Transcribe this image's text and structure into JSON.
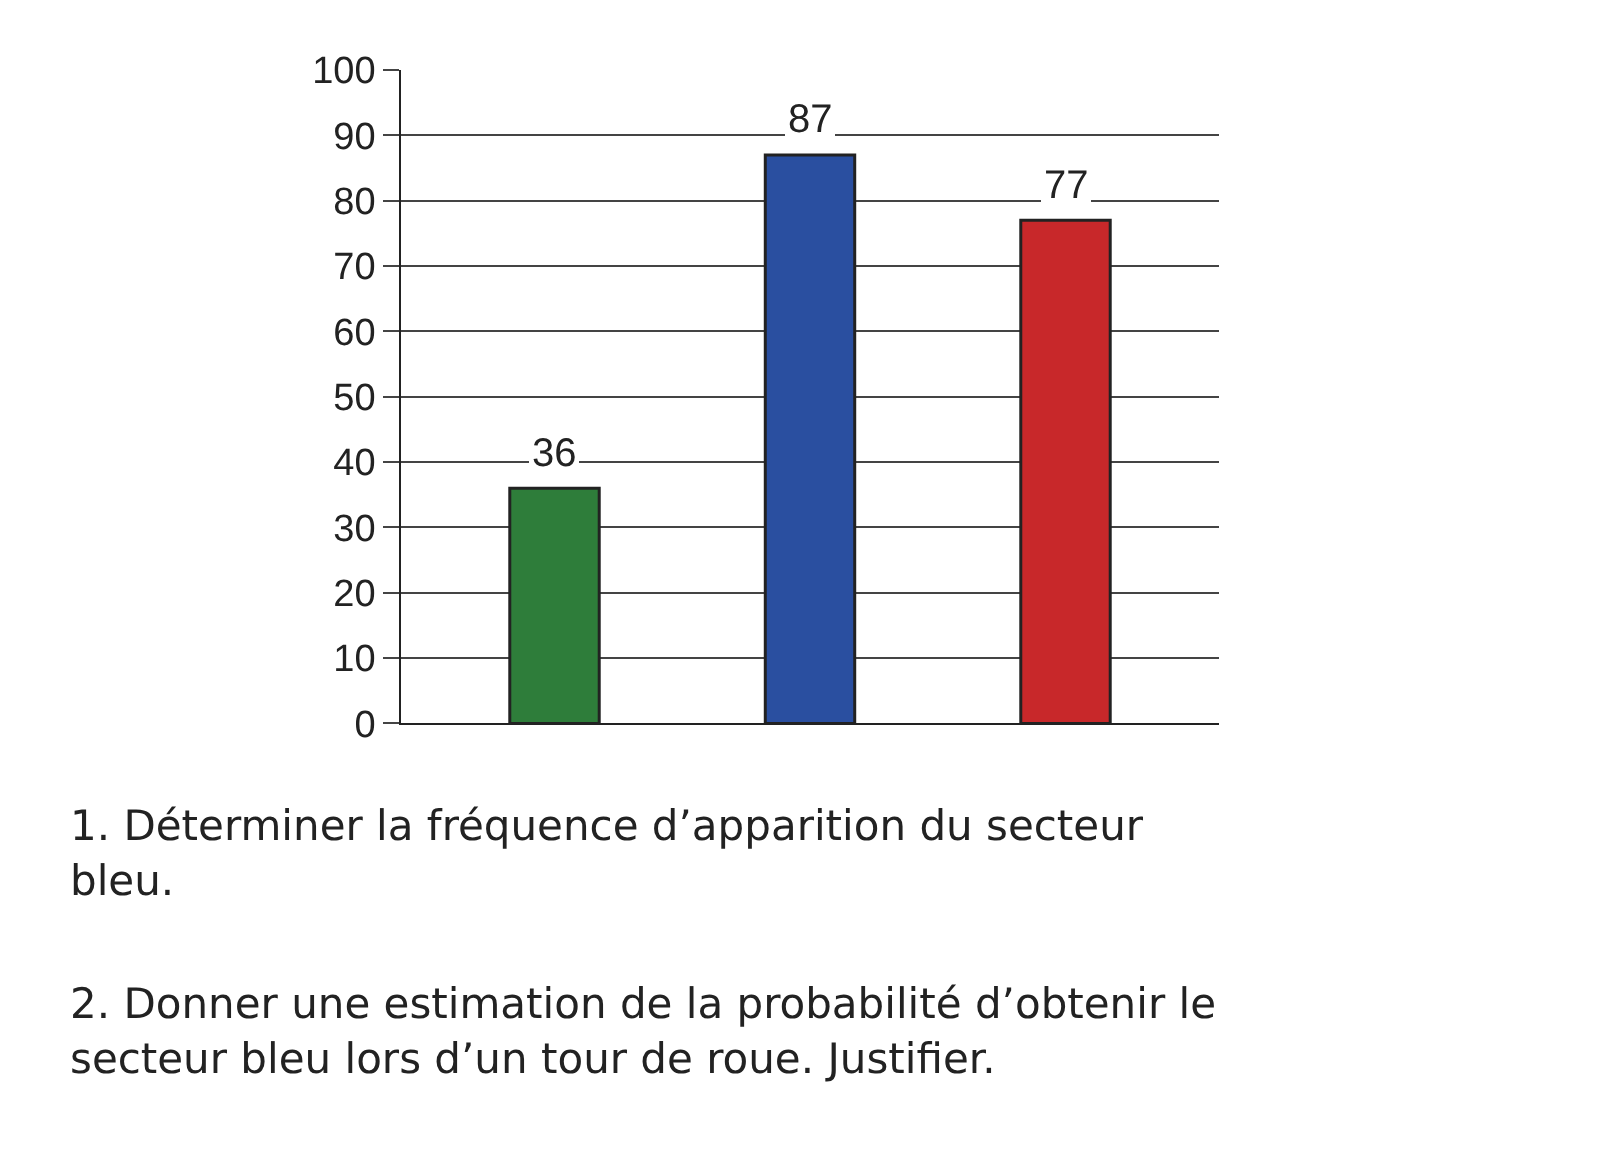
{
  "chart_data": {
    "type": "bar",
    "categories": [
      null,
      null,
      null
    ],
    "values": [
      36,
      87,
      77
    ],
    "colors": [
      "#2e7d3a",
      "#2a4fa0",
      "#c8282a"
    ],
    "ylim": [
      0,
      100
    ],
    "yticks": [
      0,
      10,
      20,
      30,
      40,
      50,
      60,
      70,
      80,
      90,
      100
    ],
    "grid": "y",
    "data_labels": true,
    "annotations": [
      "1. Déterminer la fréquence d’apparition du secteur bleu.",
      "2. Donner une estimation de la probabilité d’obtenir le secteur bleu lors d’un tour de roue. Justifier."
    ]
  }
}
